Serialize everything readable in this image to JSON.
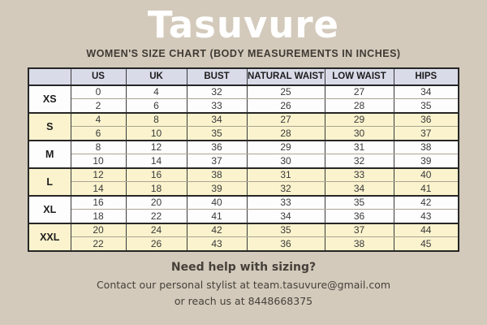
{
  "page": {
    "title": "Tasuvure",
    "subtitle": "WOMEN'S SIZE CHART (BODY MEASUREMENTS IN INCHES)",
    "background_color": "#d3cabb",
    "title_color": "#ffffff"
  },
  "table": {
    "header_bg": "#d9dbe9",
    "shaded_row_bg": "#faf3cd",
    "plain_row_bg": "#fdfdfd",
    "columns": [
      "",
      "US",
      "UK",
      "BUST",
      "NATURAL WAIST",
      "LOW WAIST",
      "HIPS"
    ],
    "groups": [
      {
        "size": "XS",
        "shaded": false,
        "rows": [
          [
            "0",
            "4",
            "32",
            "25",
            "27",
            "34"
          ],
          [
            "2",
            "6",
            "33",
            "26",
            "28",
            "35"
          ]
        ]
      },
      {
        "size": "S",
        "shaded": true,
        "rows": [
          [
            "4",
            "8",
            "34",
            "27",
            "29",
            "36"
          ],
          [
            "6",
            "10",
            "35",
            "28",
            "30",
            "37"
          ]
        ]
      },
      {
        "size": "M",
        "shaded": false,
        "rows": [
          [
            "8",
            "12",
            "36",
            "29",
            "31",
            "38"
          ],
          [
            "10",
            "14",
            "37",
            "30",
            "32",
            "39"
          ]
        ]
      },
      {
        "size": "L",
        "shaded": true,
        "rows": [
          [
            "12",
            "16",
            "38",
            "31",
            "33",
            "40"
          ],
          [
            "14",
            "18",
            "39",
            "32",
            "34",
            "41"
          ]
        ]
      },
      {
        "size": "XL",
        "shaded": false,
        "rows": [
          [
            "16",
            "20",
            "40",
            "33",
            "35",
            "42"
          ],
          [
            "18",
            "22",
            "41",
            "34",
            "36",
            "43"
          ]
        ]
      },
      {
        "size": "XXL",
        "shaded": true,
        "rows": [
          [
            "20",
            "24",
            "42",
            "35",
            "37",
            "44"
          ],
          [
            "22",
            "26",
            "43",
            "36",
            "38",
            "45"
          ]
        ]
      }
    ]
  },
  "footer": {
    "line1": "Need help with sizing?",
    "line2": "Contact our personal stylist at team.tasuvure@gmail.com",
    "line3": "or reach us at 8448668375"
  }
}
